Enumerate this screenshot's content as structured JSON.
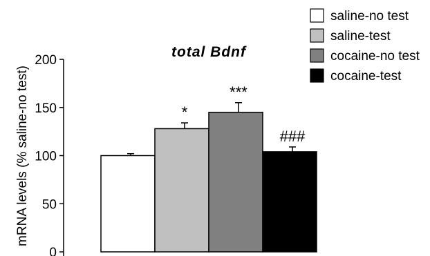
{
  "chart_data": {
    "type": "bar",
    "title": "total Bdnf",
    "xlabel": "",
    "ylabel": "mRNA levels (% saline-no test)",
    "ylim": [
      0,
      200
    ],
    "yticks": [
      "0",
      "50",
      "100",
      "150",
      "200"
    ],
    "grid": false,
    "legend_position": "top-right",
    "series": [
      {
        "name": "saline-no test",
        "value": 100,
        "error": 2,
        "color": "#ffffff",
        "annotation": ""
      },
      {
        "name": "saline-test",
        "value": 128,
        "error": 6,
        "color": "#c0c0c0",
        "annotation": "*"
      },
      {
        "name": "cocaine-no test",
        "value": 145,
        "error": 10,
        "color": "#808080",
        "annotation": "***"
      },
      {
        "name": "cocaine-test",
        "value": 104,
        "error": 5,
        "color": "#000000",
        "annotation": "###"
      }
    ]
  }
}
